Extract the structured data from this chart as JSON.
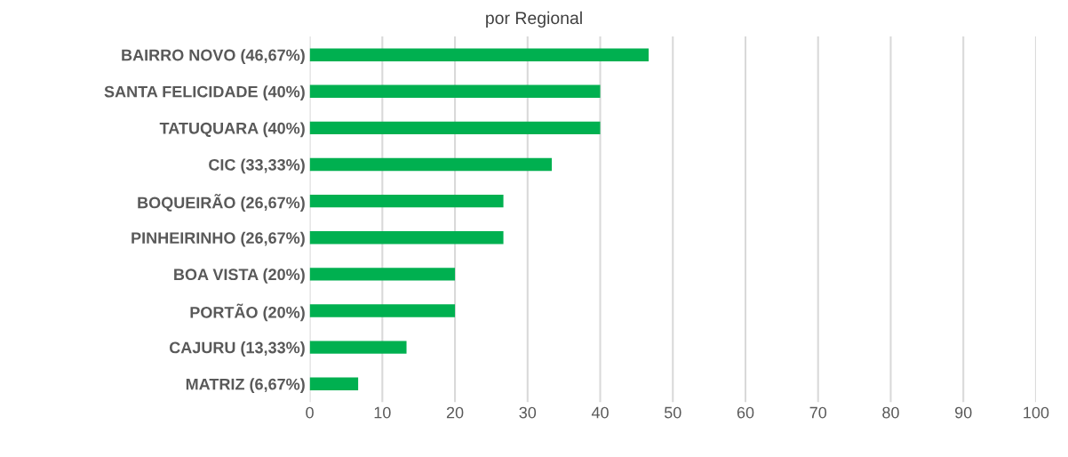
{
  "chart_data": {
    "type": "bar",
    "orientation": "horizontal",
    "title": "por Regional",
    "categories": [
      "BAIRRO NOVO (46,67%)",
      "SANTA FELICIDADE (40%)",
      "TATUQUARA (40%)",
      "CIC (33,33%)",
      "BOQUEIRÃO (26,67%)",
      "PINHEIRINHO (26,67%)",
      "BOA VISTA (20%)",
      "PORTÃO (20%)",
      "CAJURU (13,33%)",
      "MATRIZ (6,67%)"
    ],
    "values": [
      46.67,
      40,
      40,
      33.33,
      26.67,
      26.67,
      20,
      20,
      13.33,
      6.67
    ],
    "color": "#00b050",
    "xlim": [
      0,
      100
    ],
    "xticks": [
      0,
      10,
      20,
      30,
      40,
      50,
      60,
      70,
      80,
      90,
      100
    ],
    "grid": "x"
  }
}
